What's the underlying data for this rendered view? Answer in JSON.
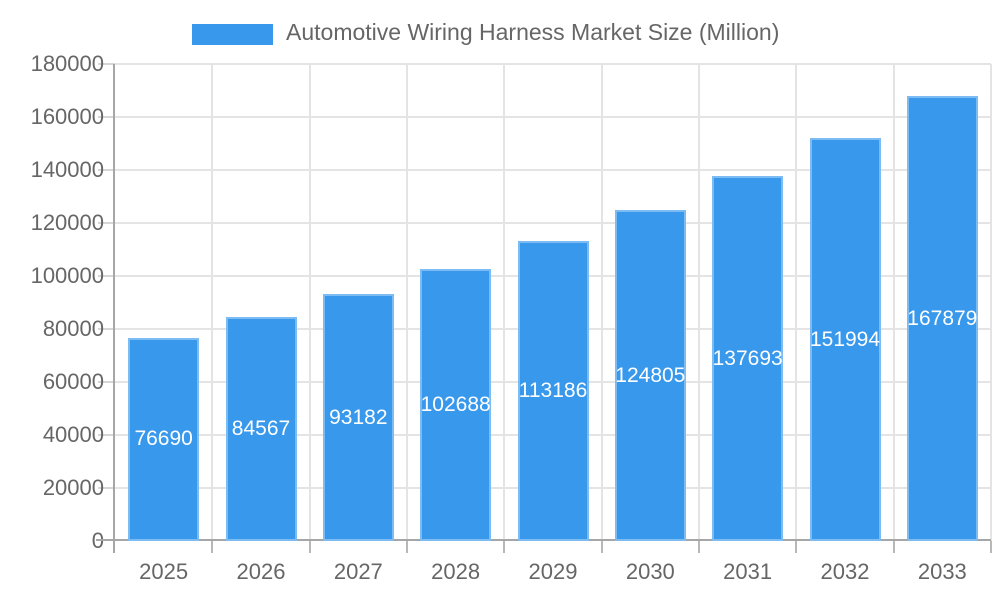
{
  "legend": {
    "label": "Automotive Wiring Harness Market Size (Million)"
  },
  "colors": {
    "bar": "#3898EC",
    "bar_edge_highlight": "rgba(255,255,255,0.35)",
    "grid": "#e4e4e4",
    "axis_line": "#a6a6a6",
    "y_tick": "#d6d6d6",
    "x_tick": "#b8b8b8",
    "axis_text": "#666666",
    "bar_label_text": "#ffffff",
    "background": "#ffffff"
  },
  "chart_data": {
    "type": "bar",
    "title": "Automotive Wiring Harness Market Size (Million)",
    "categories": [
      "2025",
      "2026",
      "2027",
      "2028",
      "2029",
      "2030",
      "2031",
      "2032",
      "2033"
    ],
    "values": [
      76690,
      84567,
      93182,
      102688,
      113186,
      124805,
      137693,
      151994,
      167879
    ],
    "series_name": "Automotive Wiring Harness Market Size (Million)",
    "xlabel": "",
    "ylabel": "",
    "ylim": [
      0,
      180000
    ],
    "ytick_step": 20000,
    "ytick_labels": [
      "0",
      "20000",
      "40000",
      "60000",
      "80000",
      "100000",
      "120000",
      "140000",
      "160000",
      "180000"
    ],
    "grid": true,
    "legend_position": "top",
    "value_label_position": "inside-middle"
  }
}
